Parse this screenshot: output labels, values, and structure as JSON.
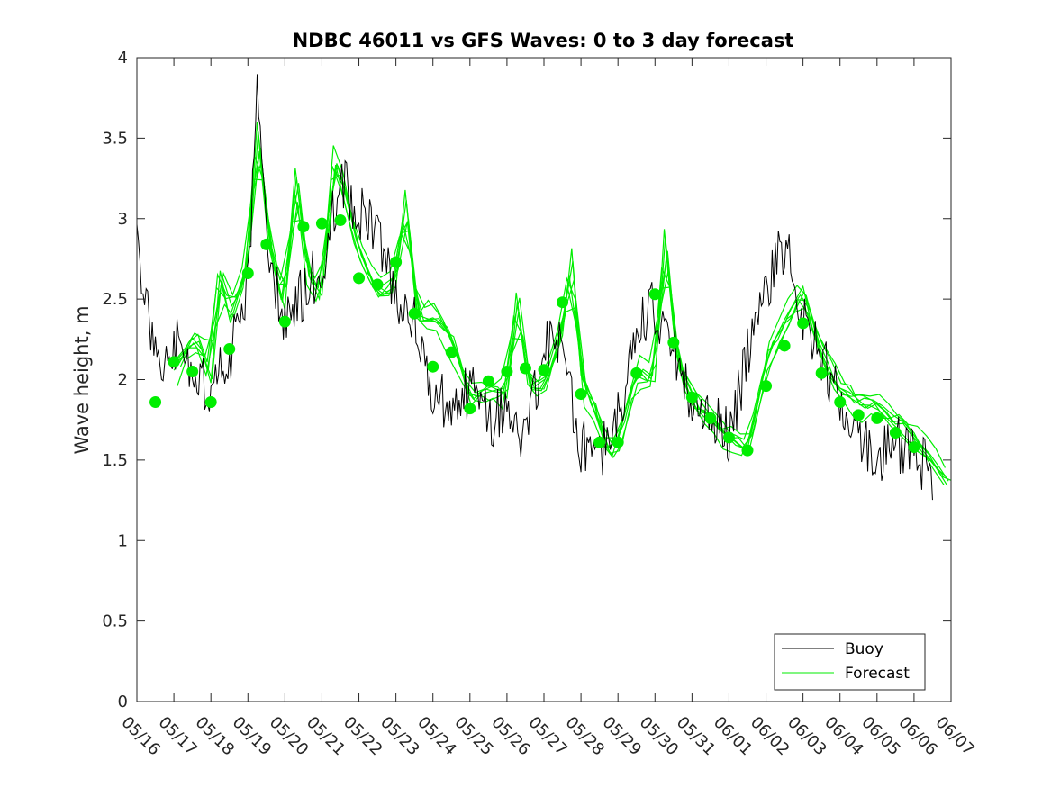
{
  "chart_data": {
    "type": "line",
    "title": "NDBC 46011 vs GFS Waves: 0 to 3 day forecast",
    "xlabel": "",
    "ylabel": "Wave height, m",
    "ylim": [
      0,
      4
    ],
    "y_ticks": [
      "0",
      "0.5",
      "1",
      "1.5",
      "2",
      "2.5",
      "3",
      "3.5",
      "4"
    ],
    "x_range_days": [
      0,
      22
    ],
    "x_tick_labels": [
      "05/16",
      "05/17",
      "05/18",
      "05/19",
      "05/20",
      "05/21",
      "05/22",
      "05/23",
      "05/24",
      "05/25",
      "05/26",
      "05/27",
      "05/28",
      "05/29",
      "05/30",
      "05/31",
      "06/01",
      "06/02",
      "06/03",
      "06/04",
      "06/05",
      "06/06",
      "06/07"
    ],
    "grid": false,
    "legend_position": "bottom-right",
    "legend": [
      "Buoy",
      "Forecast"
    ],
    "colors": {
      "buoy": "#000000",
      "forecast": "#00ee00",
      "axis": "#262626"
    },
    "series": [
      {
        "name": "Buoy",
        "color": "#000000",
        "x": [
          0,
          0.5,
          1,
          1.5,
          2,
          2.5,
          3,
          3.25,
          3.5,
          3.75,
          4,
          4.5,
          5,
          5.5,
          6,
          6.5,
          7,
          7.5,
          8,
          8.5,
          9,
          9.5,
          10,
          10.5,
          11,
          11.5,
          12,
          12.5,
          13,
          13.5,
          14,
          14.5,
          15,
          15.5,
          16,
          16.5,
          17,
          17.5,
          18,
          18.5,
          19,
          19.5,
          20,
          20.5,
          21,
          21.5
        ],
        "y": [
          2.85,
          2.1,
          2.25,
          2.05,
          1.9,
          2.15,
          2.55,
          3.9,
          2.95,
          2.6,
          2.35,
          2.55,
          2.7,
          3.25,
          3.05,
          2.9,
          2.55,
          2.35,
          1.95,
          1.8,
          1.95,
          1.75,
          1.8,
          1.65,
          2.2,
          2.2,
          1.6,
          1.55,
          1.75,
          2.35,
          2.45,
          2.2,
          1.85,
          1.75,
          1.65,
          2.15,
          2.55,
          2.85,
          2.35,
          2.15,
          1.85,
          1.7,
          1.5,
          1.6,
          1.55,
          1.4
        ]
      },
      {
        "name": "Forecast",
        "color": "#00ee00",
        "marker_x": [
          0.5,
          1,
          1.5,
          2,
          2.5,
          3,
          3.5,
          4,
          4.5,
          5,
          5.5,
          6,
          6.5,
          7,
          7.5,
          8,
          8.5,
          9,
          9.5,
          10,
          10.5,
          11,
          11.5,
          12,
          12.5,
          13,
          13.5,
          14,
          14.5,
          15,
          15.5,
          16,
          16.5,
          17,
          17.5,
          18,
          18.5,
          19,
          19.5,
          20,
          20.5,
          21
        ],
        "marker_y": [
          1.86,
          2.11,
          2.05,
          1.86,
          2.19,
          2.66,
          2.84,
          2.36,
          2.95,
          2.97,
          2.99,
          2.63,
          2.59,
          2.73,
          2.41,
          2.08,
          2.17,
          1.82,
          1.99,
          2.05,
          2.07,
          2.06,
          2.48,
          1.91,
          1.61,
          1.61,
          2.04,
          2.53,
          2.23,
          1.89,
          1.76,
          1.64,
          1.56,
          1.96,
          2.21,
          2.35,
          2.04,
          1.86,
          1.78,
          1.76,
          1.67,
          1.58
        ],
        "x": [
          1,
          1.5,
          1.8,
          2,
          2.2,
          2.5,
          3,
          3.25,
          3.6,
          4,
          4.3,
          4.6,
          5,
          5.3,
          5.6,
          6,
          6.5,
          7,
          7.25,
          7.6,
          8,
          8.5,
          9,
          9.5,
          10,
          10.25,
          10.6,
          11,
          11.5,
          11.75,
          12,
          12.5,
          12.75,
          13,
          13.5,
          14,
          14.25,
          14.6,
          15,
          15.5,
          16,
          16.5,
          17,
          17.5,
          18,
          18.5,
          19,
          19.5,
          20,
          20.5,
          21,
          21.5,
          22
        ],
        "y": [
          2.05,
          2.25,
          2.2,
          1.95,
          2.75,
          2.4,
          2.7,
          3.6,
          2.8,
          2.45,
          3.3,
          2.65,
          2.5,
          3.4,
          3.2,
          2.8,
          2.55,
          2.6,
          3.15,
          2.35,
          2.4,
          2.25,
          1.9,
          1.95,
          1.9,
          2.55,
          1.95,
          1.95,
          2.3,
          2.8,
          2.0,
          1.75,
          1.55,
          1.6,
          2.05,
          2.0,
          2.95,
          2.1,
          1.9,
          1.75,
          1.65,
          1.58,
          2.1,
          2.35,
          2.55,
          2.15,
          1.95,
          1.85,
          1.85,
          1.75,
          1.65,
          1.5,
          1.35
        ]
      }
    ]
  }
}
